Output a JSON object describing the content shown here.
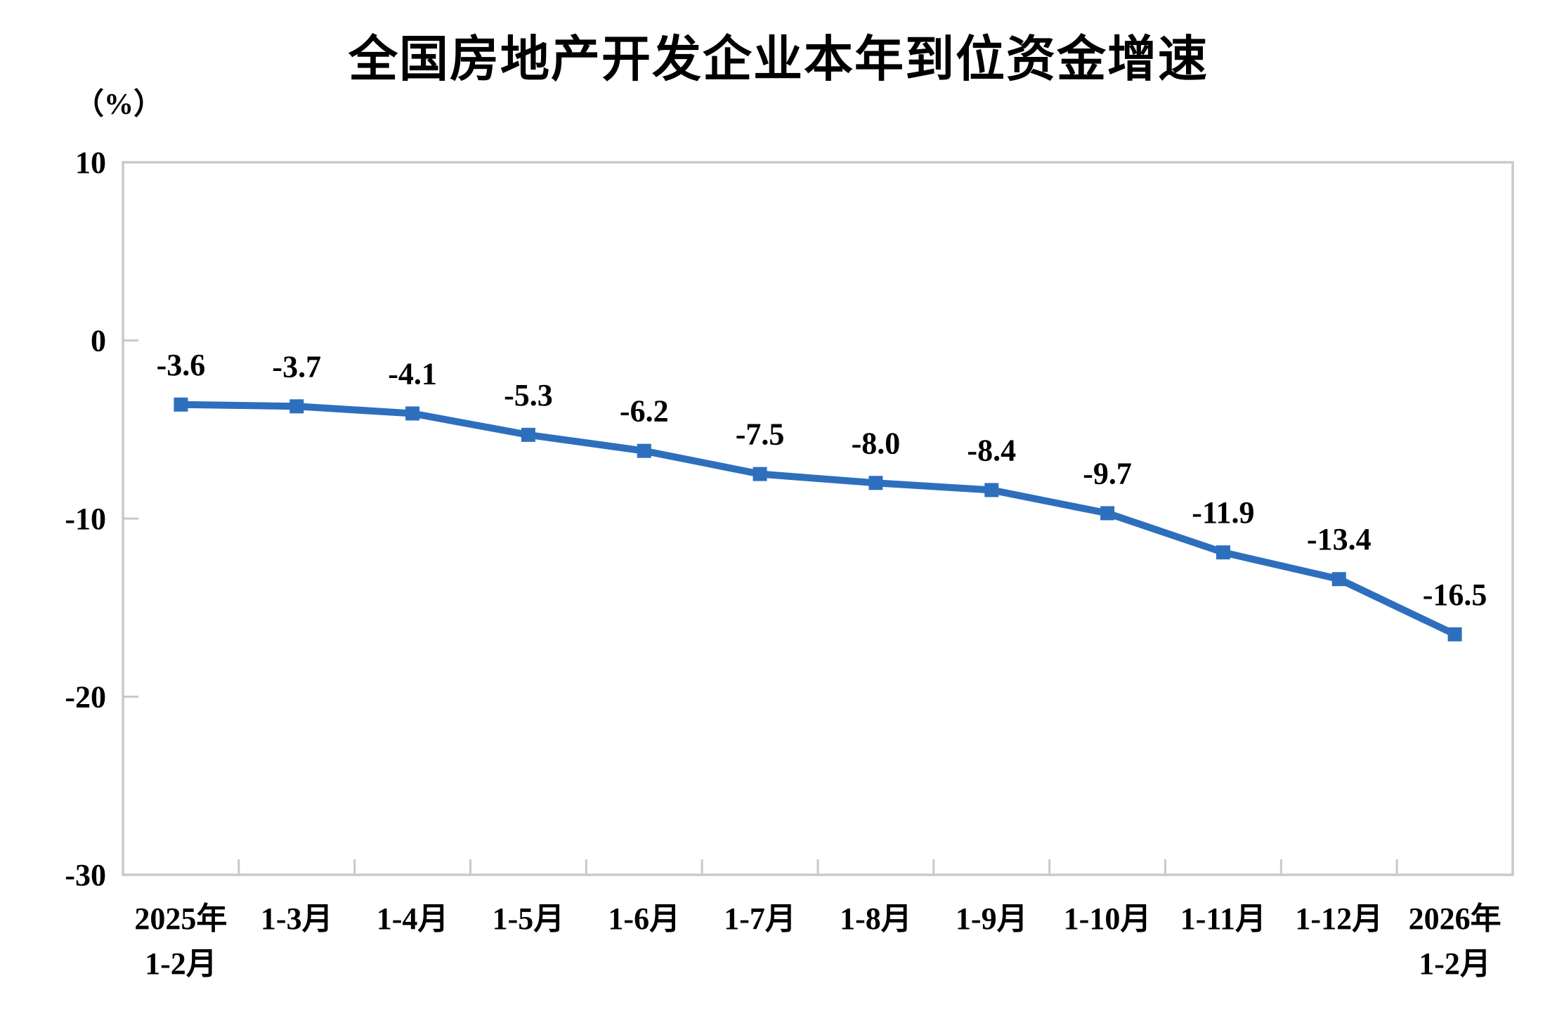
{
  "title": "全国房地产开发企业本年到位资金增速",
  "unit_label": "（%）",
  "colors": {
    "line": "#2E6FBD",
    "marker": "#2E6FBD",
    "axis": "#C9C9C9",
    "text": "#000000"
  },
  "chart_data": {
    "type": "line",
    "title": "全国房地产开发企业本年到位资金增速",
    "ylabel": "（%）",
    "categories": [
      "2025年\n1-2月",
      "1-3月",
      "1-4月",
      "1-5月",
      "1-6月",
      "1-7月",
      "1-8月",
      "1-9月",
      "1-10月",
      "1-11月",
      "1-12月",
      "2026年\n1-2月"
    ],
    "values": [
      -3.6,
      -3.7,
      -4.1,
      -5.3,
      -6.2,
      -7.5,
      -8.0,
      -8.4,
      -9.7,
      -11.9,
      -13.4,
      -16.5
    ],
    "data_labels": [
      "-3.6",
      "-3.7",
      "-4.1",
      "-5.3",
      "-6.2",
      "-7.5",
      "-8.0",
      "-8.4",
      "-9.7",
      "-11.9",
      "-13.4",
      "-16.5"
    ],
    "ylim": [
      -30,
      10
    ],
    "yticks": [
      10,
      0,
      -10,
      -20,
      -30
    ],
    "grid": false,
    "legend_position": "none",
    "marker": "square",
    "series_name": "全国房地产开发企业本年到位资金增速"
  }
}
